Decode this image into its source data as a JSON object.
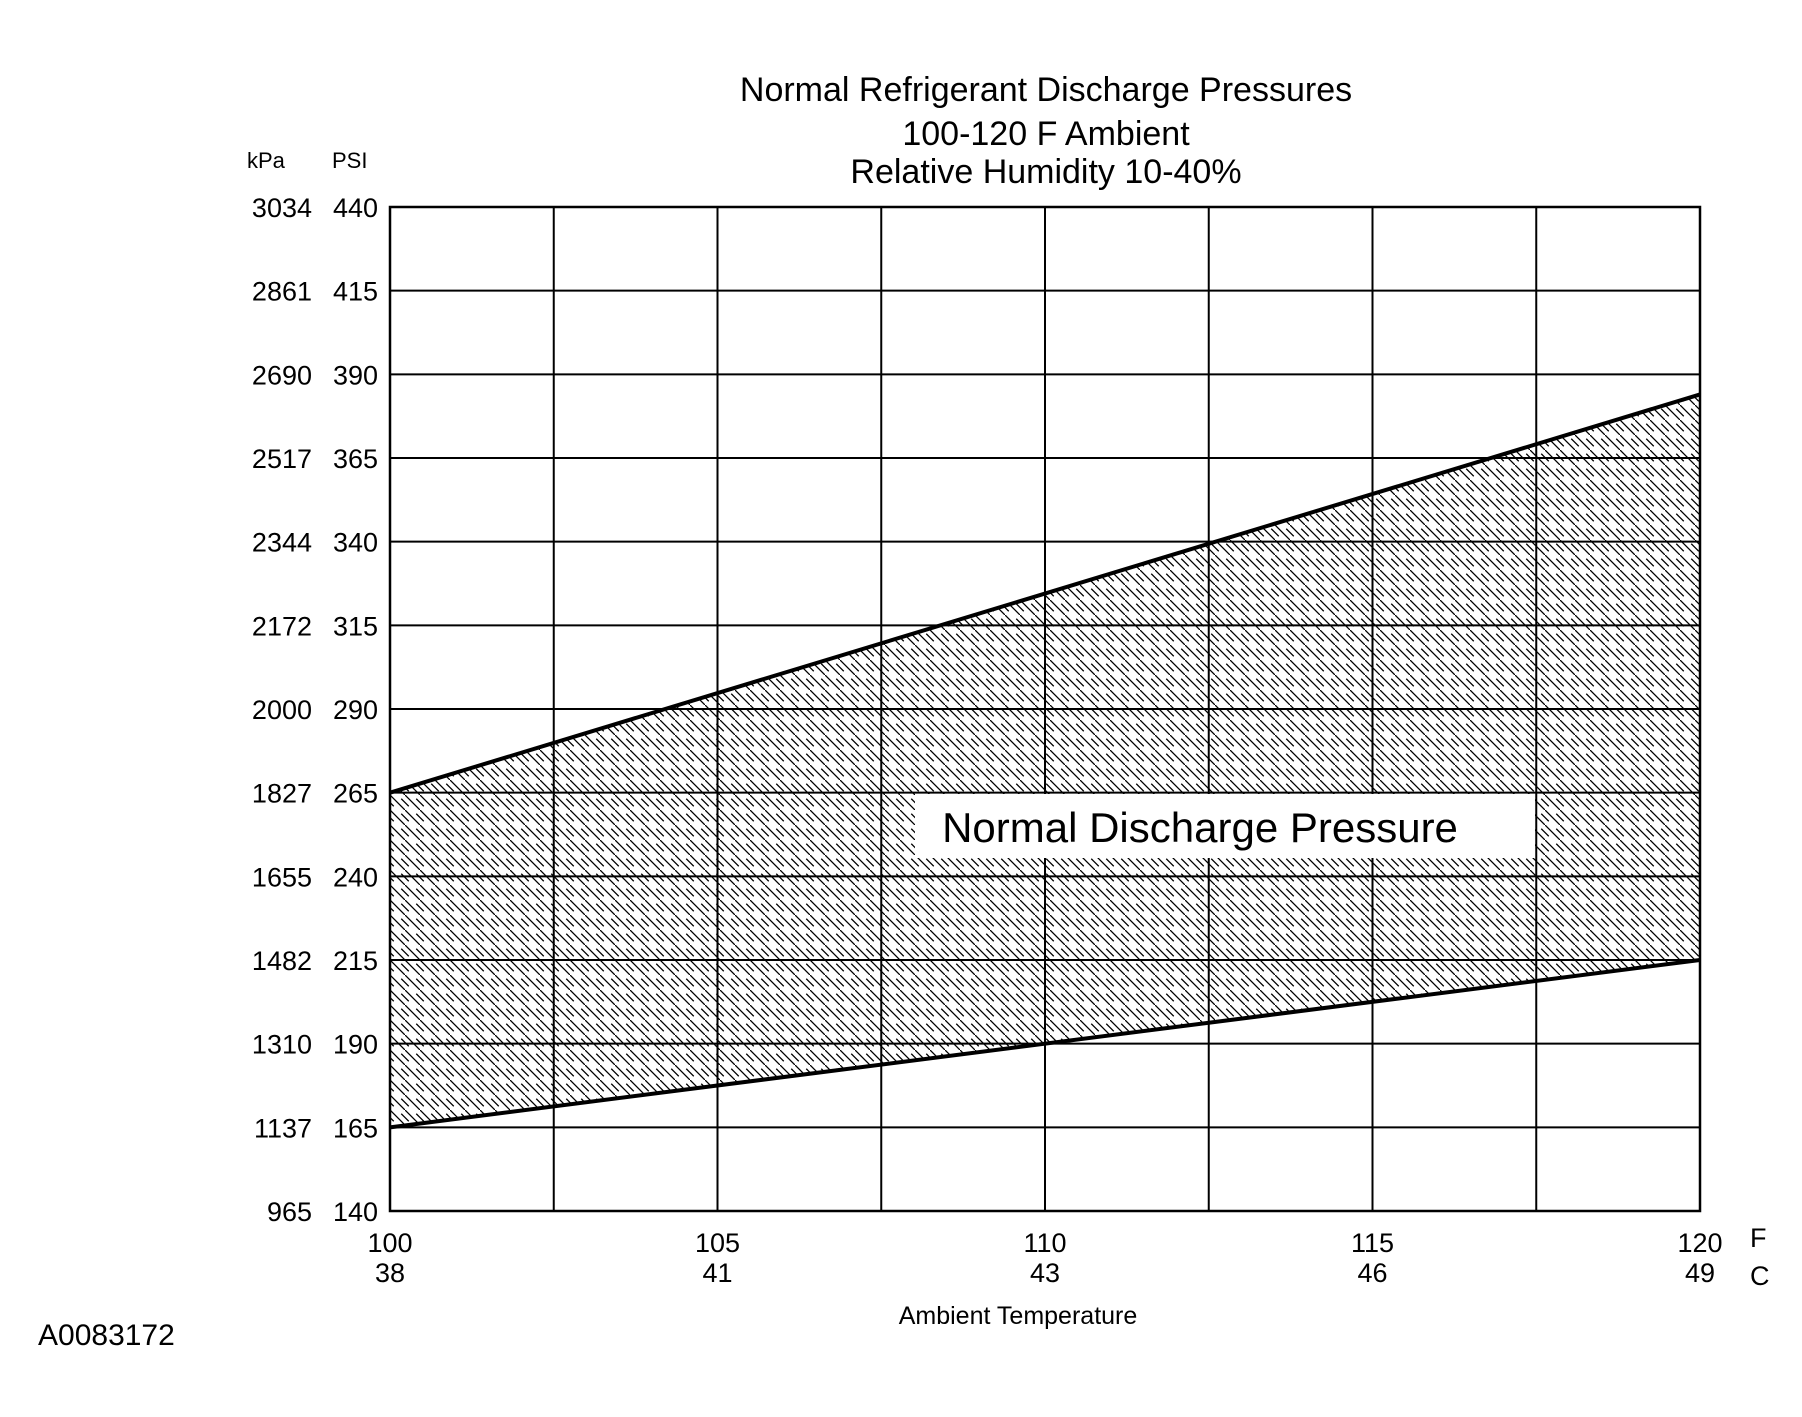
{
  "chart_data": {
    "type": "area",
    "title_lines": [
      "Normal  Refrigerant  Discharge  Pressures",
      "100-120 F Ambient",
      "Relative Humidity 10-40%"
    ],
    "xlabel": "Ambient Temperature",
    "x_unit_primary": "F",
    "x_unit_secondary": "C",
    "y_unit_primary": "PSI",
    "y_unit_secondary": "kPa",
    "xlim": [
      100,
      120
    ],
    "ylim": [
      140,
      440
    ],
    "x_ticks": [
      {
        "f": 100,
        "f_label": "100",
        "c_label": "38"
      },
      {
        "f": 105,
        "f_label": "105",
        "c_label": "41"
      },
      {
        "f": 110,
        "f_label": "110",
        "c_label": "43"
      },
      {
        "f": 115,
        "f_label": "115",
        "c_label": "46"
      },
      {
        "f": 120,
        "f_label": "120",
        "c_label": "49"
      }
    ],
    "x_minor_gridlines": [
      102.5,
      107.5,
      112.5,
      117.5
    ],
    "y_ticks": [
      {
        "psi": 140,
        "psi_label": "140",
        "kpa_label": "965"
      },
      {
        "psi": 165,
        "psi_label": "165",
        "kpa_label": "1137"
      },
      {
        "psi": 190,
        "psi_label": "190",
        "kpa_label": "1310"
      },
      {
        "psi": 215,
        "psi_label": "215",
        "kpa_label": "1482"
      },
      {
        "psi": 240,
        "psi_label": "240",
        "kpa_label": "1655"
      },
      {
        "psi": 265,
        "psi_label": "265",
        "kpa_label": "1827"
      },
      {
        "psi": 290,
        "psi_label": "290",
        "kpa_label": "2000"
      },
      {
        "psi": 315,
        "psi_label": "315",
        "kpa_label": "2172"
      },
      {
        "psi": 340,
        "psi_label": "340",
        "kpa_label": "2344"
      },
      {
        "psi": 365,
        "psi_label": "365",
        "kpa_label": "2517"
      },
      {
        "psi": 390,
        "psi_label": "390",
        "kpa_label": "2690"
      },
      {
        "psi": 415,
        "psi_label": "415",
        "kpa_label": "2861"
      },
      {
        "psi": 440,
        "psi_label": "440",
        "kpa_label": "3034"
      }
    ],
    "band": {
      "name": "Normal Discharge Pressure",
      "fill": "diagonal hatch",
      "x": [
        100,
        120
      ],
      "upper": [
        265,
        384
      ],
      "lower": [
        165,
        215
      ]
    },
    "grid": true,
    "legend": "none"
  },
  "figure_id": "A0083172"
}
